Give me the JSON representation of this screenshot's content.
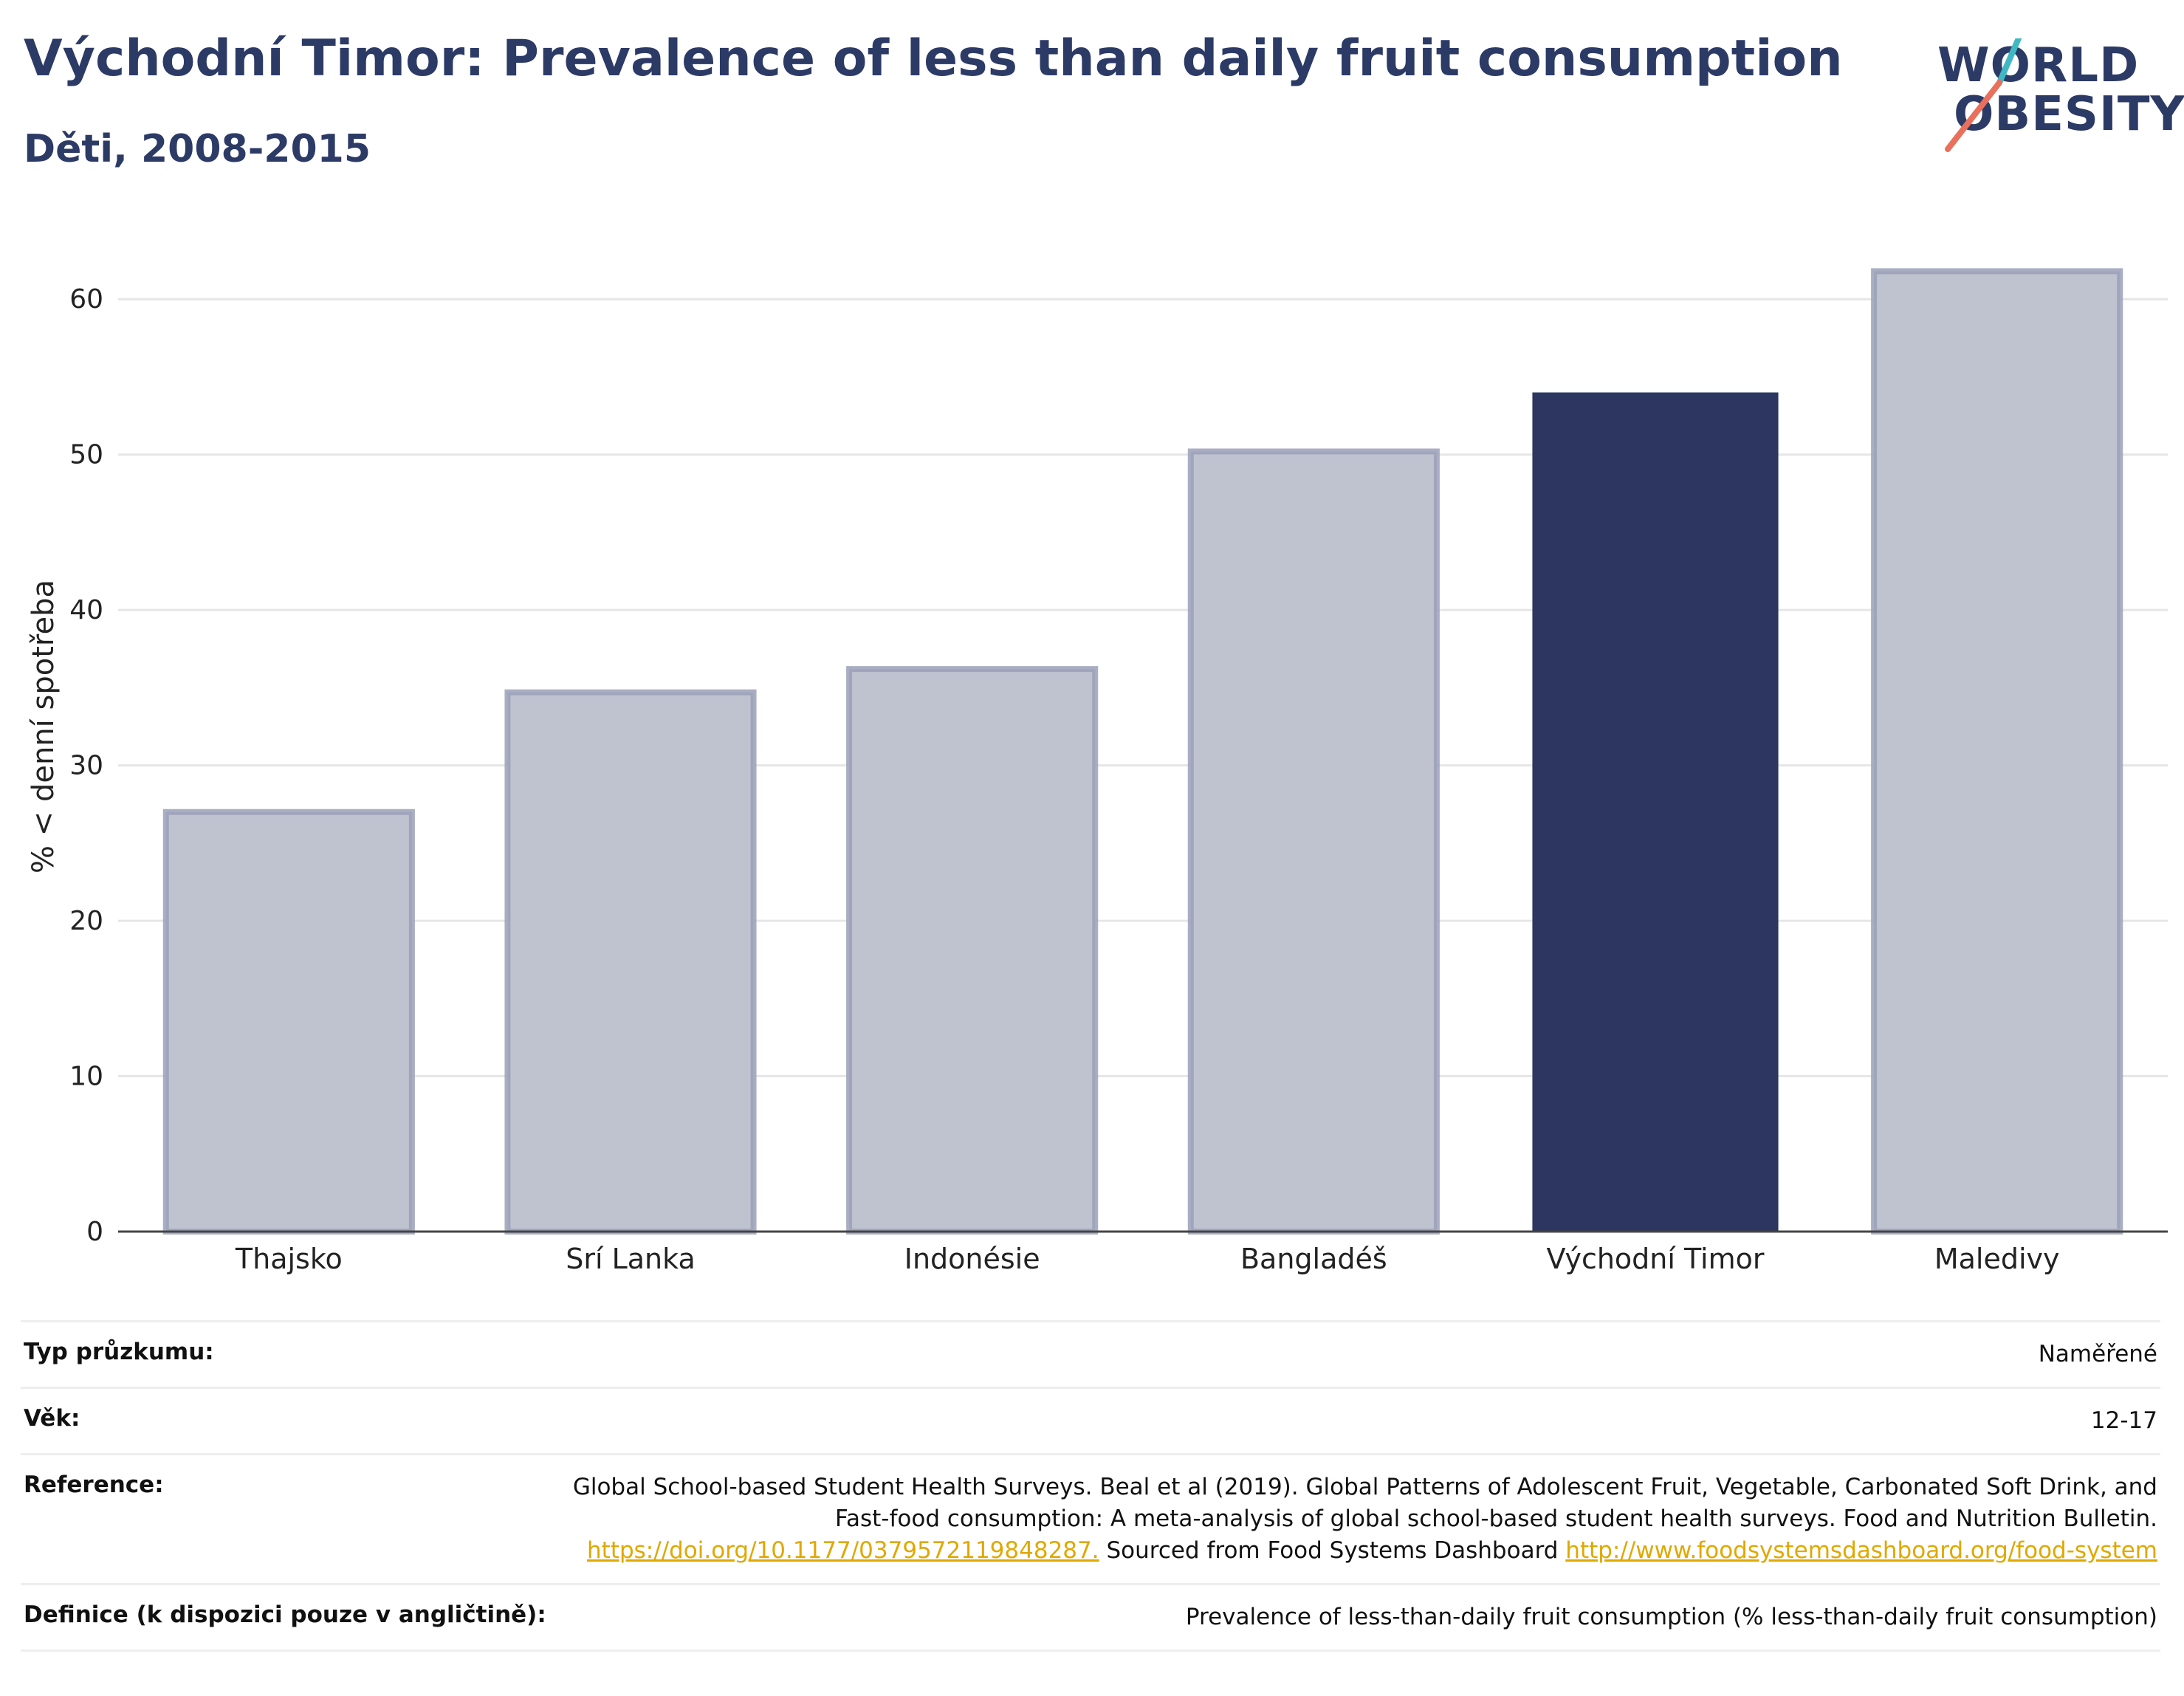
{
  "header": {
    "title": "Východní Timor: Prevalence of less than daily fruit consumption",
    "subtitle": "Děti, 2008-2015"
  },
  "logo": {
    "line1": "WORLD",
    "line2": "OBESITY",
    "slash_colors": [
      "#3fb8c4",
      "#e8705c"
    ]
  },
  "chart_data": {
    "type": "bar",
    "categories": [
      "Thajsko",
      "Srí Lanka",
      "Indonésie",
      "Bangladéš",
      "Východní Timor",
      "Maledivy"
    ],
    "values": [
      27.0,
      34.7,
      36.2,
      50.2,
      54.0,
      61.8
    ],
    "highlight": "Východní Timor",
    "ylabel": "% < denní spotřeba",
    "ylim": [
      0,
      65
    ],
    "yticks": [
      0,
      10,
      20,
      30,
      40,
      50,
      60
    ],
    "grid": true,
    "colors": {
      "highlight": "#2c3660",
      "other": "#bfc3cf",
      "other_border": "#9aa0b8",
      "grid": "#e6e6e6",
      "axis": "#444444"
    }
  },
  "info": {
    "rows": [
      {
        "key": "Typ průzkumu:",
        "value": "Naměřené"
      },
      {
        "key": "Věk:",
        "value": "12-17"
      },
      {
        "key": "Reference:",
        "value_text": "Global School-based Student Health Surveys. Beal et al (2019). Global Patterns of Adolescent Fruit, Vegetable, Carbonated Soft Drink, and Fast-food consumption: A meta-analysis of global school-based student health surveys. Food and Nutrition Bulletin.",
        "link1": "https://doi.org/10.1177/0379572119848287.",
        "middle": " Sourced from Food Systems Dashboard ",
        "link2": "http://www.foodsystemsdashboard.org/food-system"
      },
      {
        "key": "Definice (k dispozici pouze v angličtině):",
        "value": "Prevalence of less-than-daily fruit consumption (% less-than-daily fruit consumption)"
      }
    ]
  }
}
